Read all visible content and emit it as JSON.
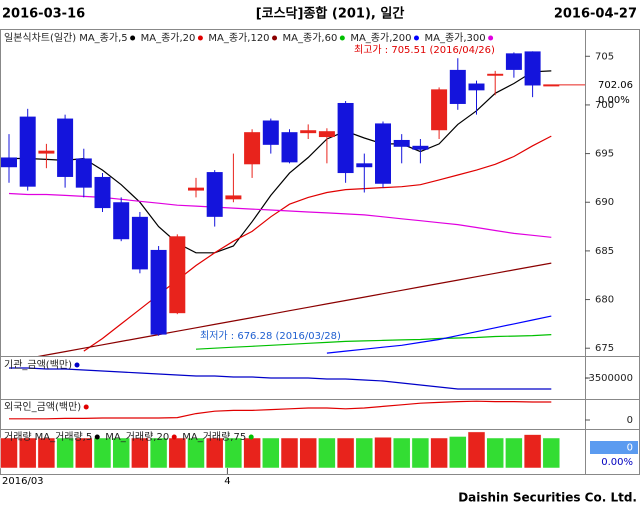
{
  "header": {
    "start_date": "2016-03-16",
    "title": "[코스닥]종합 (201), 일간",
    "end_date": "2016-04-27"
  },
  "chart_data": [
    {
      "type": "candlestick",
      "name": "일본식차트(일간)",
      "up_color": "#e8231c",
      "down_color": "#1414dc",
      "open": [
        694.6,
        698.8,
        695.0,
        698.6,
        694.5,
        692.6,
        690.0,
        688.5,
        685.1,
        678.6,
        691.2,
        693.1,
        690.3,
        693.9,
        698.4,
        697.2,
        697.1,
        696.7,
        700.2,
        694.0,
        698.1,
        696.4,
        695.8,
        697.4,
        703.6,
        702.2,
        703.0,
        705.3,
        705.5,
        702.06
      ],
      "high": [
        697,
        699.6,
        696,
        699,
        695.5,
        693,
        690.5,
        689,
        685.5,
        686.7,
        692.5,
        693.3,
        695,
        697.5,
        698.6,
        697.5,
        698,
        697.6,
        700.4,
        695,
        698.3,
        697,
        696.5,
        701.8,
        704.8,
        702.5,
        703.5,
        705.4,
        705.51,
        702.06
      ],
      "low": [
        692,
        691.2,
        693.5,
        691.5,
        690.5,
        689,
        686,
        682.7,
        676.28,
        678.5,
        690.5,
        687.5,
        690,
        692.5,
        695,
        694,
        696.5,
        694,
        692,
        691,
        691.5,
        694,
        694,
        696.5,
        699.5,
        699,
        701,
        702.8,
        700.8,
        702.06
      ],
      "close": [
        693.6,
        691.6,
        695.3,
        692.6,
        691.5,
        689.4,
        686.2,
        683.1,
        676.4,
        686.5,
        691.5,
        688.5,
        690.7,
        697.2,
        695.9,
        694.1,
        697.4,
        697.3,
        693.0,
        693.6,
        691.9,
        695.7,
        695.4,
        701.6,
        700.1,
        701.5,
        703.2,
        703.6,
        702.0,
        702.06
      ],
      "series": [
        {
          "name": "MA_종가,5",
          "color": "#000000",
          "values": [
            694.5,
            694.5,
            694.4,
            694.3,
            694.5,
            693.3,
            691.8,
            690,
            687.5,
            685.8,
            684.8,
            684.8,
            685.5,
            688,
            690.7,
            693,
            694.6,
            696.5,
            697.3,
            696.6,
            696,
            696,
            695.2,
            696,
            698,
            699.4,
            701.2,
            702.2,
            703.4,
            703.5
          ]
        },
        {
          "name": "MA_종가,20",
          "color": "#e00000",
          "values": [
            null,
            null,
            null,
            null,
            674.7,
            676,
            677.5,
            679,
            680.5,
            682,
            683.5,
            684.8,
            686,
            687,
            688.5,
            689.8,
            690.5,
            691,
            691.3,
            691.4,
            691.5,
            691.6,
            691.8,
            692.3,
            692.8,
            693.3,
            693.9,
            694.7,
            695.8,
            696.8
          ]
        },
        {
          "name": "MA_종가,120",
          "color": "#8b0000",
          "values": [
            673.6,
            673.95,
            674.3,
            674.65,
            675.0,
            675.35,
            675.7,
            676.05,
            676.4,
            676.75,
            677.1,
            677.45,
            677.8,
            678.15,
            678.5,
            678.85,
            679.2,
            679.55,
            679.9,
            680.25,
            680.6,
            680.95,
            681.3,
            681.65,
            682.0,
            682.35,
            682.7,
            683.05,
            683.4,
            683.75
          ]
        },
        {
          "name": "MA_종가,60",
          "color": "#00c000",
          "values": [
            null,
            null,
            null,
            null,
            null,
            null,
            null,
            null,
            null,
            null,
            674.9,
            675.0,
            675.1,
            675.2,
            675.3,
            675.4,
            675.5,
            675.6,
            675.7,
            675.75,
            675.8,
            675.85,
            675.9,
            676.0,
            676.05,
            676.1,
            676.2,
            676.25,
            676.3,
            676.4
          ]
        },
        {
          "name": "MA_종가,200",
          "color": "#0000ff",
          "values": [
            null,
            null,
            null,
            null,
            null,
            null,
            null,
            null,
            null,
            null,
            null,
            null,
            null,
            null,
            null,
            null,
            null,
            674.5,
            674.7,
            674.9,
            675.1,
            675.3,
            675.6,
            675.9,
            676.3,
            676.7,
            677.1,
            677.5,
            677.9,
            678.3
          ]
        },
        {
          "name": "MA_종가,300",
          "color": "#e000e0",
          "values": [
            690.9,
            690.8,
            690.8,
            690.7,
            690.6,
            690.5,
            690.3,
            690.1,
            689.9,
            689.7,
            689.6,
            689.5,
            689.4,
            689.3,
            689.2,
            689.1,
            689.0,
            688.9,
            688.8,
            688.7,
            688.5,
            688.3,
            688.1,
            687.9,
            687.7,
            687.4,
            687.1,
            686.8,
            686.6,
            686.4
          ]
        }
      ],
      "ylim": [
        674.2,
        707.7
      ],
      "yticks": [
        675,
        680,
        685,
        690,
        695,
        700,
        705
      ],
      "annotations": [
        {
          "text": "최고가 : 705.51 (2016/04/26)",
          "color": "#e00000"
        },
        {
          "text": "최저가 : 676.28 (2016/03/28)",
          "color": "#2060d0"
        }
      ],
      "last_price": "702.06",
      "last_change": "0.00%"
    },
    {
      "type": "line",
      "name": "기관_금액(백만)",
      "color": "#0000c8",
      "values": [
        -3000000,
        -3000000,
        -3050000,
        -3050000,
        -3100000,
        -3150000,
        -3200000,
        -3250000,
        -3300000,
        -3350000,
        -3400000,
        -3400000,
        -3450000,
        -3450000,
        -3500000,
        -3500000,
        -3500000,
        -3550000,
        -3550000,
        -3600000,
        -3650000,
        -3750000,
        -3850000,
        -3950000,
        -4050000,
        -4050000,
        -4050000,
        -4050000,
        -4050000,
        -4050000
      ],
      "ylim": [
        -4500000,
        -2500000
      ],
      "yticks": [
        -3500000
      ]
    },
    {
      "type": "line",
      "name": "외국인_금액(백만)",
      "color": "#e00000",
      "values": [
        150000,
        150000,
        150000,
        200000,
        200000,
        250000,
        250000,
        250000,
        250000,
        300000,
        800000,
        1100000,
        1200000,
        1200000,
        1300000,
        1400000,
        1500000,
        1500000,
        1400000,
        1500000,
        1700000,
        1900000,
        2100000,
        2200000,
        2300000,
        2350000,
        2300000,
        2300000,
        2250000,
        2250000
      ],
      "ylim": [
        -1000000,
        2500000
      ],
      "yticks": [
        0
      ]
    },
    {
      "type": "bar",
      "name": "거래량",
      "legend": [
        {
          "name": "MA_거래량,5",
          "color": "#000000"
        },
        {
          "name": "MA_거래량,20",
          "color": "#e00000"
        },
        {
          "name": "MA_거래량,75",
          "color": "#00c000"
        }
      ],
      "values": [
        79,
        79,
        79,
        79,
        79,
        79,
        79,
        79,
        79,
        79,
        79,
        79,
        79,
        79,
        79,
        79,
        79,
        79,
        79,
        79,
        81,
        79,
        79,
        79,
        83,
        95,
        79,
        79,
        88,
        79
      ],
      "colors": [
        "#e8231c",
        "#e8231c",
        "#e8231c",
        "#33dd33",
        "#e8231c",
        "#33dd33",
        "#33dd33",
        "#e8231c",
        "#33dd33",
        "#e8231c",
        "#33dd33",
        "#e8231c",
        "#33dd33",
        "#e8231c",
        "#33dd33",
        "#e8231c",
        "#e8231c",
        "#33dd33",
        "#e8231c",
        "#33dd33",
        "#e8231c",
        "#33dd33",
        "#33dd33",
        "#e8231c",
        "#33dd33",
        "#e8231c",
        "#33dd33",
        "#33dd33",
        "#e8231c",
        "#33dd33"
      ],
      "ylim": [
        0,
        100
      ],
      "box_value": "0",
      "box_change": "0.00%"
    }
  ],
  "footer": {
    "month_label": "2016/03",
    "next_month_label": "4",
    "company": "Daishin Securities Co. Ltd."
  }
}
